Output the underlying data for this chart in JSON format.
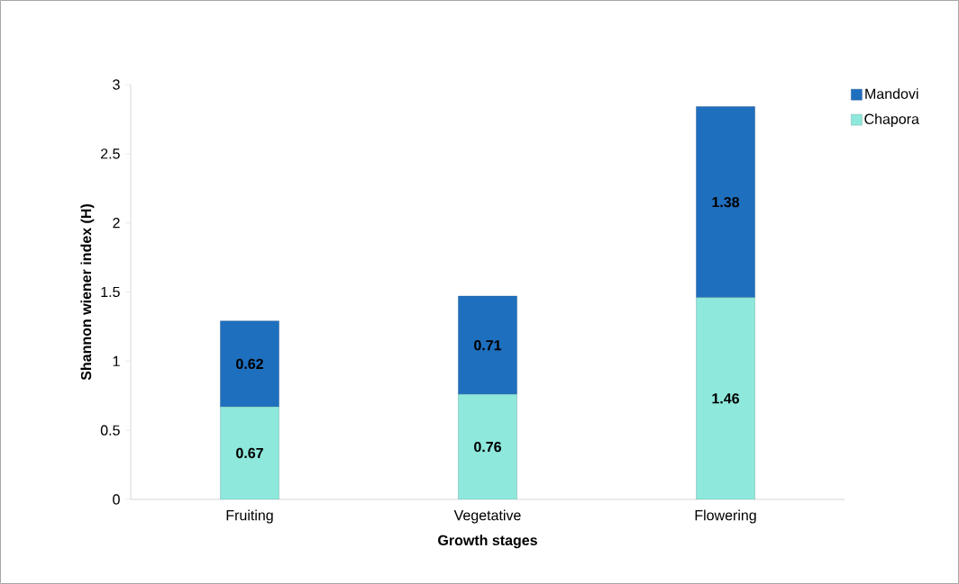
{
  "chart_data": {
    "type": "bar",
    "stacked": true,
    "xlabel": "Growth stages",
    "ylabel": "Shannon wiener index (H)",
    "categories": [
      "Fruiting",
      "Vegetative",
      "Flowering"
    ],
    "series": [
      {
        "name": "Chapora",
        "color": "#8ee8dc",
        "values": [
          0.67,
          0.76,
          1.46
        ],
        "value_labels": [
          "0.67",
          "0.76",
          "1.46"
        ]
      },
      {
        "name": "Mandovi",
        "color": "#1f6fbf",
        "values": [
          0.62,
          0.71,
          1.38
        ],
        "value_labels": [
          "0.62",
          "0.71",
          "1.38"
        ]
      }
    ],
    "ylim": [
      0,
      3
    ],
    "yticks": [
      0,
      0.5,
      1,
      1.5,
      2,
      2.5,
      3
    ],
    "legend": "top right",
    "grid": false
  }
}
